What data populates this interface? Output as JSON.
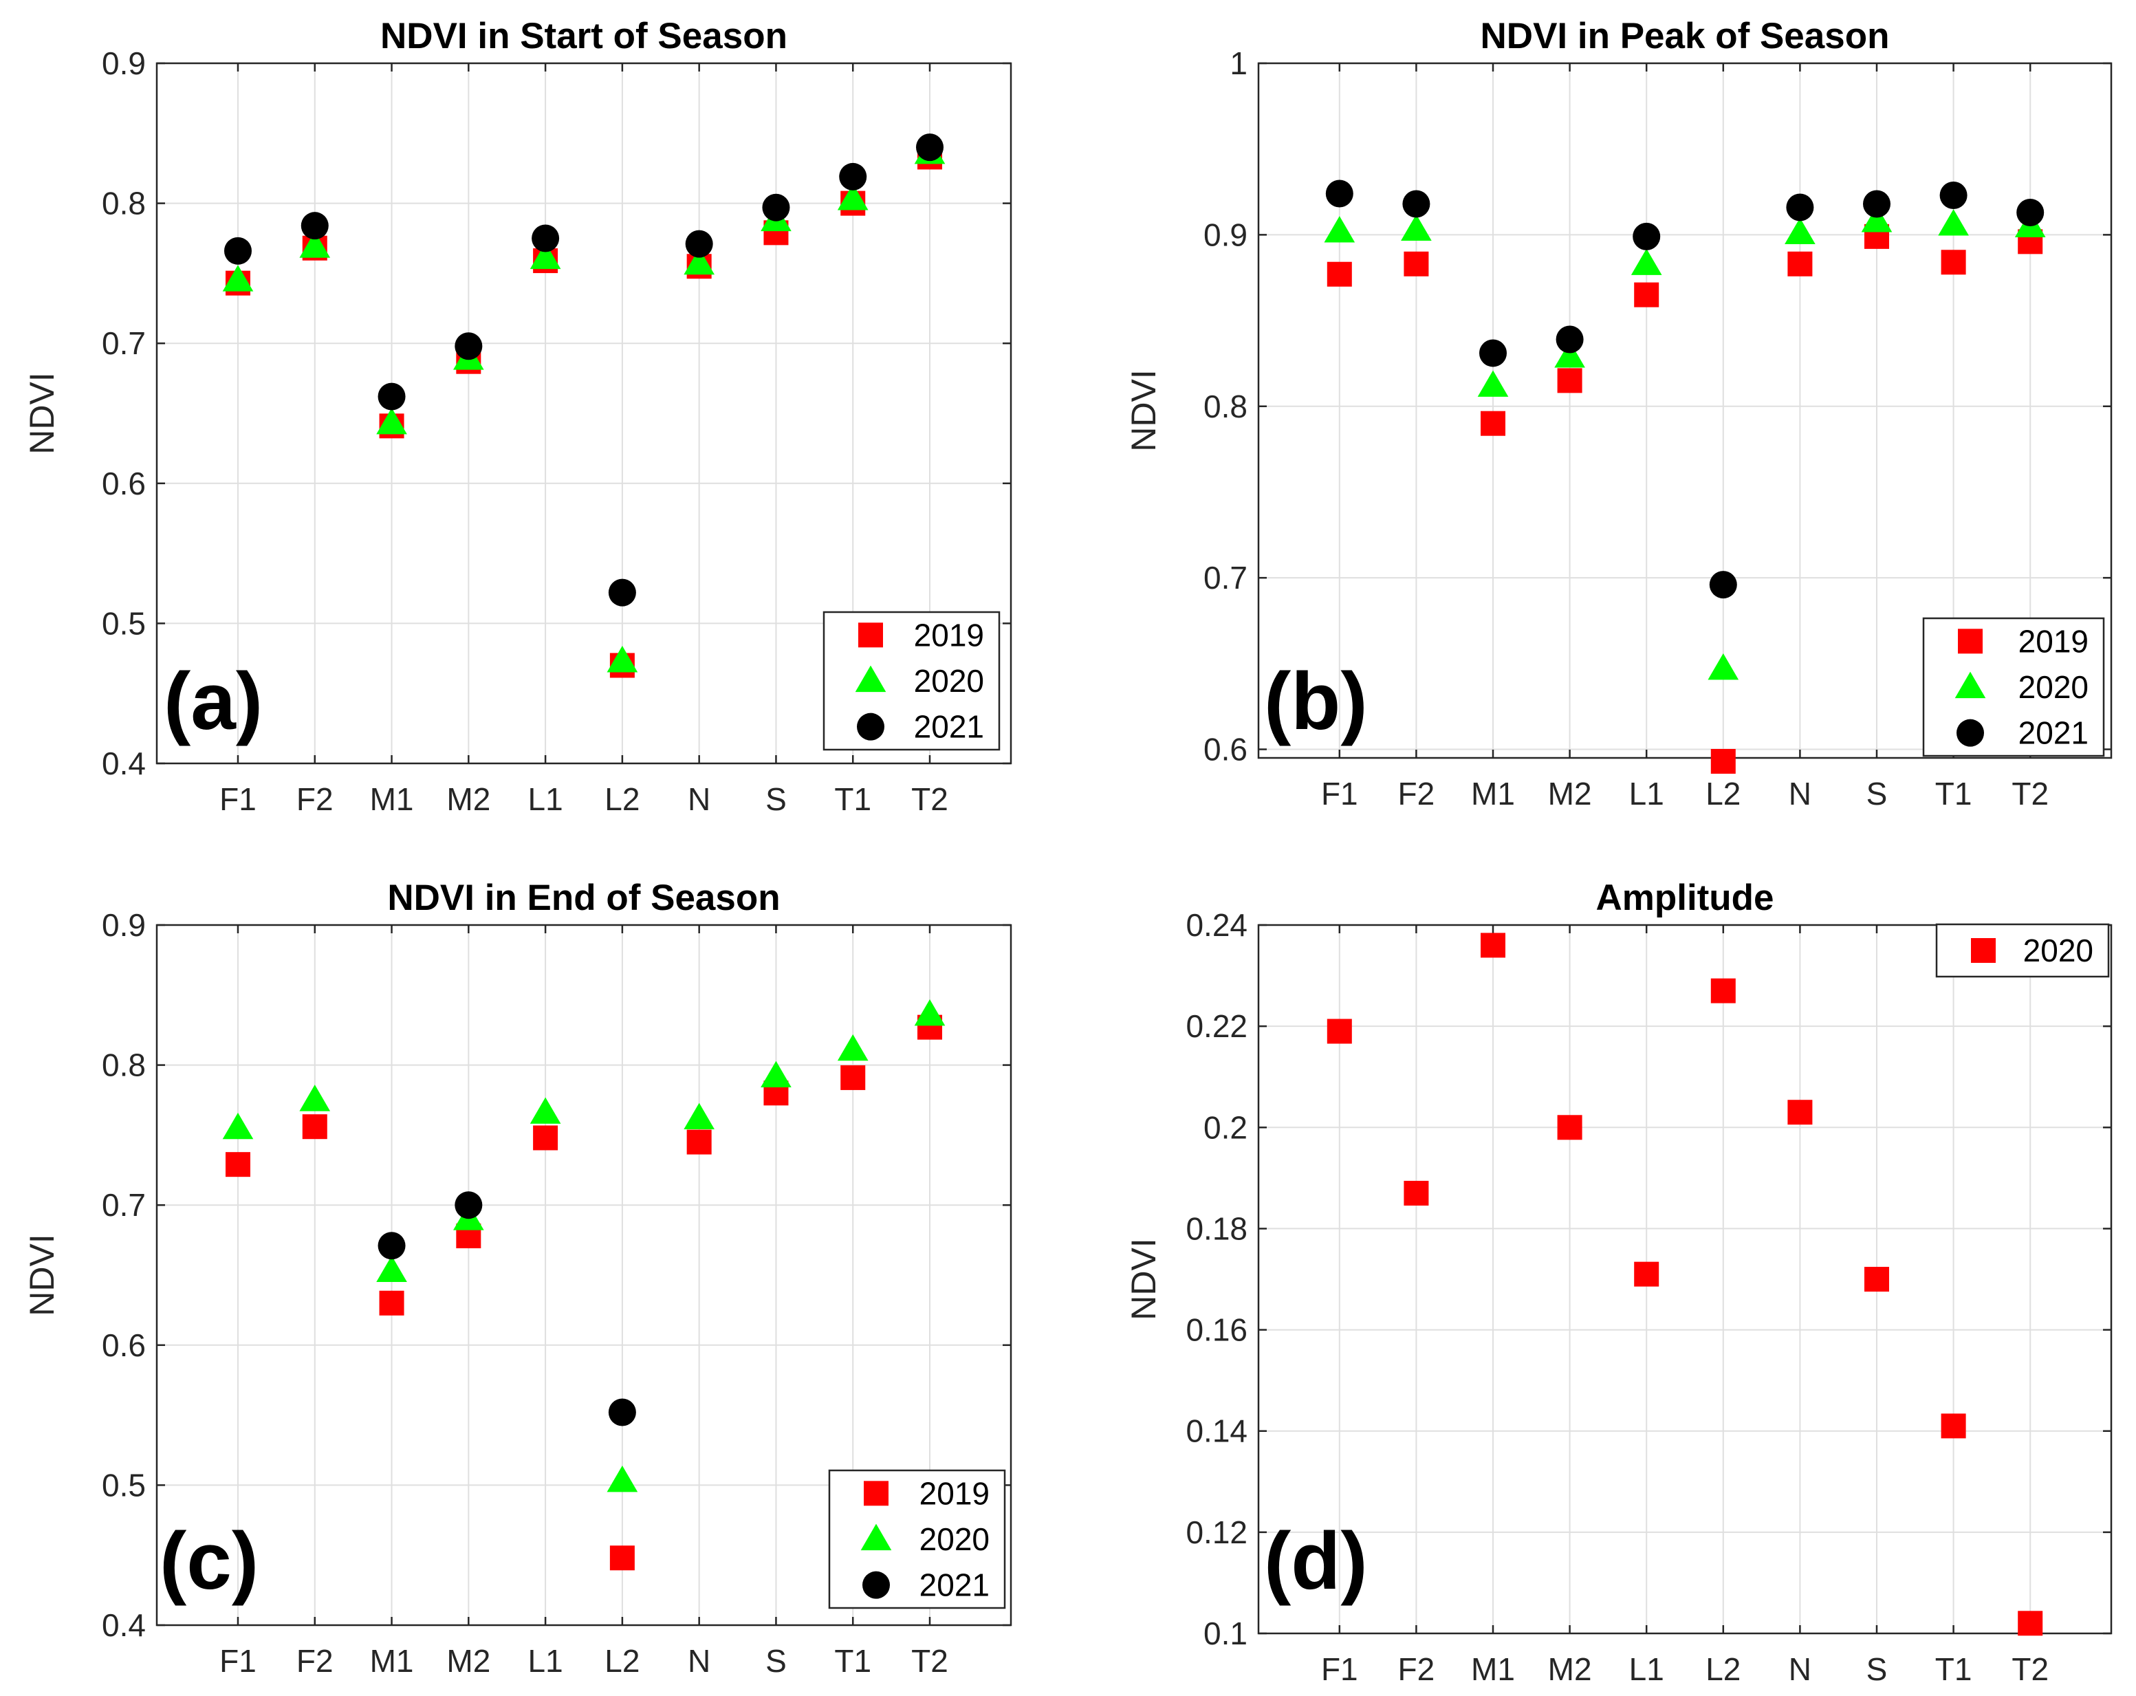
{
  "colors": {
    "y2019": "#ff0000",
    "y2020": "#00ff00",
    "y2021": "#000000",
    "grid": "#dfdfdf",
    "axis": "#262626"
  },
  "chart_data": [
    {
      "panel_label": "(a)",
      "type": "scatter",
      "title": "NDVI in Start of Season",
      "xlabel": "",
      "ylabel": "NDVI",
      "categories": [
        "F1",
        "F2",
        "M1",
        "M2",
        "L1",
        "L2",
        "N",
        "S",
        "T1",
        "T2"
      ],
      "ylim": [
        0.4,
        0.9
      ],
      "yticks": [
        "0.4",
        "0.5",
        "0.6",
        "0.7",
        "0.8",
        "0.9"
      ],
      "legend_position": "bottom-right",
      "series": [
        {
          "name": "2019",
          "marker": "square",
          "values": [
            0.743,
            0.768,
            0.641,
            0.687,
            0.759,
            0.47,
            0.755,
            0.779,
            0.8,
            0.833
          ]
        },
        {
          "name": "2020",
          "marker": "triangle",
          "values": [
            0.745,
            0.769,
            0.643,
            0.689,
            0.761,
            0.473,
            0.757,
            0.788,
            0.803,
            0.836
          ]
        },
        {
          "name": "2021",
          "marker": "circle",
          "values": [
            0.766,
            0.784,
            0.662,
            0.698,
            0.775,
            0.522,
            0.771,
            0.797,
            0.819,
            0.84
          ]
        }
      ]
    },
    {
      "panel_label": "(b)",
      "type": "scatter",
      "title": "NDVI in Peak of Season",
      "xlabel": "",
      "ylabel": "NDVI",
      "categories": [
        "F1",
        "F2",
        "M1",
        "M2",
        "L1",
        "L2",
        "N",
        "S",
        "T1",
        "T2"
      ],
      "ylim": [
        0.595,
        1.0
      ],
      "yticks": [
        "0.6",
        "0.7",
        "0.8",
        "0.9",
        "1"
      ],
      "legend_position": "bottom-right",
      "series": [
        {
          "name": "2019",
          "marker": "square",
          "values": [
            0.877,
            0.883,
            0.79,
            0.815,
            0.865,
            0.593,
            0.883,
            0.899,
            0.884,
            0.896
          ]
        },
        {
          "name": "2020",
          "marker": "triangle",
          "values": [
            0.902,
            0.903,
            0.812,
            0.829,
            0.883,
            0.647,
            0.901,
            0.908,
            0.906,
            0.905
          ]
        },
        {
          "name": "2021",
          "marker": "circle",
          "values": [
            0.924,
            0.918,
            0.831,
            0.839,
            0.899,
            0.696,
            0.916,
            0.918,
            0.923,
            0.913
          ]
        }
      ]
    },
    {
      "panel_label": "(c)",
      "type": "scatter",
      "title": "NDVI in End of Season",
      "xlabel": "",
      "ylabel": "NDVI",
      "categories": [
        "F1",
        "F2",
        "M1",
        "M2",
        "L1",
        "L2",
        "N",
        "S",
        "T1",
        "T2"
      ],
      "ylim": [
        0.4,
        0.9
      ],
      "yticks": [
        "0.4",
        "0.5",
        "0.6",
        "0.7",
        "0.8",
        "0.9"
      ],
      "legend_position": "bottom-right",
      "series": [
        {
          "name": "2019",
          "marker": "square",
          "values": [
            0.729,
            0.756,
            0.63,
            0.678,
            0.748,
            0.448,
            0.745,
            0.78,
            0.791,
            0.827
          ]
        },
        {
          "name": "2020",
          "marker": "triangle",
          "values": [
            0.755,
            0.775,
            0.653,
            0.69,
            0.766,
            0.503,
            0.762,
            0.792,
            0.811,
            0.836
          ]
        },
        {
          "name": "2021",
          "marker": "circle",
          "values": [
            null,
            null,
            0.671,
            0.7,
            null,
            0.552,
            null,
            null,
            null,
            null
          ]
        }
      ]
    },
    {
      "panel_label": "(d)",
      "type": "scatter",
      "title": "Amplitude",
      "xlabel": "",
      "ylabel": "NDVI",
      "categories": [
        "F1",
        "F2",
        "M1",
        "M2",
        "L1",
        "L2",
        "N",
        "S",
        "T1",
        "T2"
      ],
      "ylim": [
        0.1,
        0.24
      ],
      "yticks": [
        "0.1",
        "0.12",
        "0.14",
        "0.16",
        "0.18",
        "0.2",
        "0.22",
        "0.24"
      ],
      "legend_position": "top-right",
      "series": [
        {
          "name": "2020",
          "marker": "square",
          "values": [
            0.219,
            0.187,
            0.236,
            0.2,
            0.171,
            0.227,
            0.203,
            0.17,
            0.141,
            0.102
          ]
        }
      ]
    }
  ]
}
